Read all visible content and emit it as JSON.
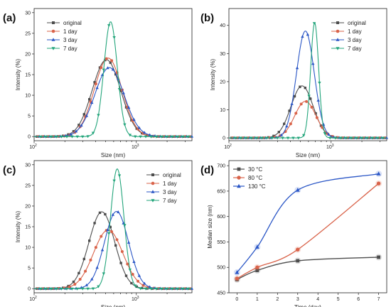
{
  "colors": {
    "original": "#4d4d4d",
    "day1": "#d9634a",
    "day3": "#2a56c6",
    "day7": "#23a57b",
    "c30": "#4d4d4d",
    "c80": "#d9634a",
    "c130": "#2a56c6"
  },
  "chart_data": [
    {
      "panel": "(a)",
      "type": "line",
      "xscale": "log",
      "xlim": [
        100,
        3500
      ],
      "ylim": [
        -1,
        31
      ],
      "xlabel": "Size (nm)",
      "ylabel": "Intensity (%)",
      "xticklabels": [
        "10^2",
        "10^3"
      ],
      "yticks": [
        0,
        5,
        10,
        15,
        20,
        25,
        30
      ],
      "legend_position": "top-left",
      "series": [
        {
          "name": "original",
          "marker": "square",
          "mu": 510,
          "sigma": 0.32,
          "peak": 18.6
        },
        {
          "name": "1 day",
          "marker": "circle",
          "mu": 530,
          "sigma": 0.31,
          "peak": 19.0
        },
        {
          "name": "3 day",
          "marker": "triangle-up",
          "mu": 545,
          "sigma": 0.33,
          "peak": 16.7
        },
        {
          "name": "7 day",
          "marker": "triangle-down",
          "mu": 560,
          "sigma": 0.15,
          "peak": 27.8
        }
      ]
    },
    {
      "panel": "(b)",
      "type": "line",
      "xscale": "log",
      "xlim": [
        100,
        3500
      ],
      "ylim": [
        -1,
        46
      ],
      "xlabel": "Size (nm)",
      "ylabel": "Intensity (%)",
      "xticklabels": [
        "10^2",
        "10^3"
      ],
      "yticks": [
        0,
        10,
        20,
        30,
        40
      ],
      "legend_position": "top-right",
      "series": [
        {
          "name": "original",
          "marker": "square",
          "mu": 520,
          "sigma": 0.25,
          "peak": 18.5
        },
        {
          "name": "1 day",
          "marker": "circle",
          "mu": 560,
          "sigma": 0.24,
          "peak": 13.0
        },
        {
          "name": "3 day",
          "marker": "triangle-up",
          "mu": 560,
          "sigma": 0.2,
          "peak": 38.0
        },
        {
          "name": "7 day",
          "marker": "triangle-down",
          "mu": 690,
          "sigma": 0.09,
          "peak": 41.0
        }
      ]
    },
    {
      "panel": "(c)",
      "type": "line",
      "xscale": "log",
      "xlim": [
        100,
        3500
      ],
      "ylim": [
        -1,
        31
      ],
      "xlabel": "Size (nm)",
      "ylabel": "Intensity (%)",
      "xticklabels": [
        "10^2",
        "10^3"
      ],
      "yticks": [
        0,
        5,
        10,
        15,
        20,
        25,
        30
      ],
      "legend_position": "top-right",
      "series": [
        {
          "name": "original",
          "marker": "square",
          "mu": 460,
          "sigma": 0.29,
          "peak": 18.6
        },
        {
          "name": "1 day",
          "marker": "circle",
          "mu": 530,
          "sigma": 0.33,
          "peak": 14.2
        },
        {
          "name": "3 day",
          "marker": "triangle-up",
          "mu": 640,
          "sigma": 0.27,
          "peak": 18.7
        },
        {
          "name": "7 day",
          "marker": "triangle-down",
          "mu": 650,
          "sigma": 0.15,
          "peak": 29.0
        }
      ]
    },
    {
      "panel": "(d)",
      "type": "line",
      "xlim": [
        -0.4,
        7.4
      ],
      "ylim": [
        450,
        710
      ],
      "xlabel": "Time (day)",
      "ylabel": "Median size (nm)",
      "xticks": [
        0,
        1,
        2,
        3,
        4,
        5,
        6,
        7
      ],
      "yticks": [
        450,
        500,
        550,
        600,
        650,
        700
      ],
      "legend_position": "top-left",
      "x": [
        0,
        1,
        3,
        7
      ],
      "series": [
        {
          "name": "30 °C",
          "marker": "square",
          "values": [
            476,
            494,
            513,
            520
          ]
        },
        {
          "name": "80 °C",
          "marker": "circle",
          "values": [
            478,
            500,
            535,
            665
          ]
        },
        {
          "name": "130 °C",
          "marker": "triangle-up",
          "values": [
            490,
            540,
            652,
            684
          ]
        }
      ]
    }
  ]
}
